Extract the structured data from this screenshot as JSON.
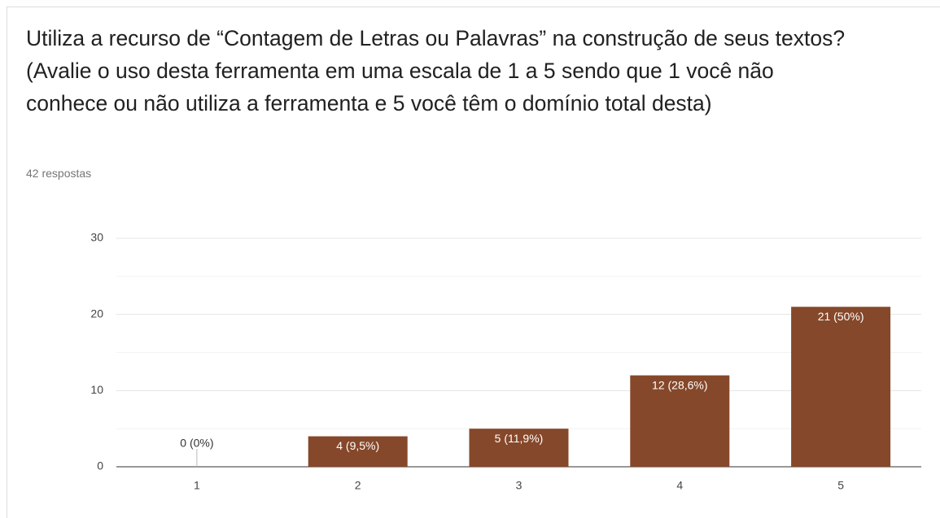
{
  "chart_data": {
    "type": "bar",
    "title": "Utiliza a recurso de “Contagem de Letras ou Palavras” na construção de seus textos? (Avalie o uso desta ferramenta em uma escala de 1 a 5 sendo que 1 você não conhece ou não utiliza a ferramenta e 5 você têm o domínio total desta)",
    "subtitle": "42 respostas",
    "categories": [
      "1",
      "2",
      "3",
      "4",
      "5"
    ],
    "values": [
      0,
      4,
      5,
      12,
      21
    ],
    "value_labels": [
      "0 (0%)",
      "4 (9,5%)",
      "5 (11,9%)",
      "12 (28,6%)",
      "21 (50%)"
    ],
    "color": "#86482a",
    "ylim": [
      0,
      30
    ],
    "yticks": [
      0,
      10,
      20,
      30
    ],
    "minor_yticks": [
      5,
      15,
      25
    ],
    "grid": true
  }
}
